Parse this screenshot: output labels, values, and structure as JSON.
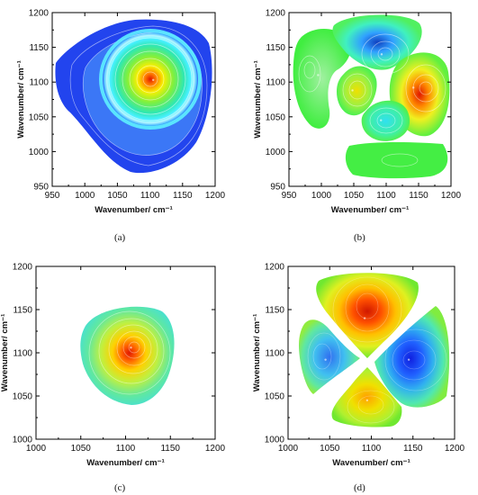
{
  "chart_data": [
    {
      "type": "contour",
      "panel_label": "(a)",
      "xlabel": "Wavenumber/ cm⁻¹",
      "ylabel": "Wavenumber/ cm⁻¹",
      "xlim": [
        950,
        1200
      ],
      "ylim": [
        950,
        1200
      ],
      "x_ticks": [
        "950",
        "1000",
        "1050",
        "1100",
        "1150",
        "1200"
      ],
      "y_ticks": [
        "950",
        "1000",
        "1050",
        "1100",
        "1150",
        "1200"
      ],
      "peaks": [
        {
          "x": 1105,
          "y": 1103,
          "sign": "positive",
          "level": "max"
        }
      ],
      "colors": {
        "background": "#1e3cf0",
        "ring": "#55e8ff",
        "peak": "#e02000"
      }
    },
    {
      "type": "contour",
      "panel_label": "(b)",
      "xlabel": "Wavenumber/ cm⁻¹",
      "ylabel": "Wavenumber/ cm⁻¹",
      "xlim": [
        950,
        1200
      ],
      "ylim": [
        950,
        1200
      ],
      "x_ticks": [
        "950",
        "1000",
        "1050",
        "1100",
        "1150",
        "1200"
      ],
      "y_ticks": [
        "950",
        "1000",
        "1050",
        "1100",
        "1150",
        "1200"
      ],
      "peaks": [
        {
          "x": 1093,
          "y": 1140,
          "sign": "negative",
          "level": "min"
        },
        {
          "x": 1142,
          "y": 1092,
          "sign": "positive",
          "level": "max"
        },
        {
          "x": 1048,
          "y": 1088,
          "sign": "positive",
          "level": "medium"
        },
        {
          "x": 1092,
          "y": 1045,
          "sign": "negative",
          "level": "medium"
        },
        {
          "x": 995,
          "y": 1110,
          "sign": "positive",
          "level": "low"
        }
      ],
      "colors": {
        "background": "#33ee33",
        "negative": "#1a50d8",
        "positive": "#e82010"
      }
    },
    {
      "type": "contour",
      "panel_label": "(c)",
      "xlabel": "Wavenumber/ cm⁻¹",
      "ylabel": "Wavenumber/ cm⁻¹",
      "xlim": [
        1000,
        1200
      ],
      "ylim": [
        1000,
        1200
      ],
      "x_ticks": [
        "1000",
        "1050",
        "1100",
        "1150",
        "1200"
      ],
      "y_ticks": [
        "1000",
        "1050",
        "1100",
        "1150",
        "1200"
      ],
      "peaks": [
        {
          "x": 1106,
          "y": 1106,
          "sign": "positive",
          "level": "max"
        }
      ],
      "colors": {
        "edge": "#4de0c8",
        "peak": "#e02000"
      }
    },
    {
      "type": "contour",
      "panel_label": "(d)",
      "xlabel": "Wavenumber/ cm⁻¹",
      "ylabel": "Wavenumber/ cm⁻¹",
      "xlim": [
        1000,
        1200
      ],
      "ylim": [
        1000,
        1200
      ],
      "x_ticks": [
        "1000",
        "1050",
        "1100",
        "1150",
        "1200"
      ],
      "y_ticks": [
        "1000",
        "1050",
        "1100",
        "1150",
        "1200"
      ],
      "peaks": [
        {
          "x": 1092,
          "y": 1140,
          "sign": "positive",
          "level": "max"
        },
        {
          "x": 1145,
          "y": 1092,
          "sign": "negative",
          "level": "min"
        },
        {
          "x": 1045,
          "y": 1092,
          "sign": "negative",
          "level": "medium"
        },
        {
          "x": 1095,
          "y": 1045,
          "sign": "positive",
          "level": "medium"
        }
      ],
      "colors": {
        "edge": "#7fe82a",
        "negative": "#1a30e0",
        "positive": "#e82010"
      }
    }
  ]
}
